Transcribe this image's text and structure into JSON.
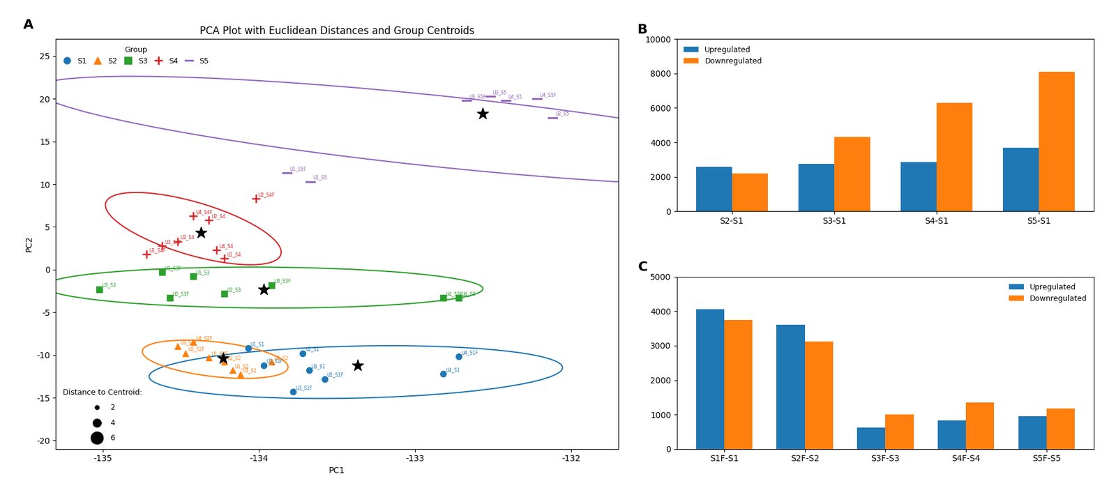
{
  "chart_data": [
    {
      "type": "scatter",
      "panel_label": "A",
      "title": "PCA Plot with Euclidean Distances and Group Centroids",
      "xlabel": "PC1",
      "ylabel": "PC2",
      "xlim": [
        -135.3,
        -131.7
      ],
      "ylim": [
        -21,
        27
      ],
      "xticks": [
        -135,
        -134,
        -133,
        -132
      ],
      "yticks": [
        -20,
        -15,
        -10,
        -5,
        0,
        5,
        10,
        15,
        20,
        25
      ],
      "legend": "upper left",
      "legend_title": "Group",
      "series": [
        {
          "name": "S1",
          "marker": "circle",
          "x": [
            -134.07,
            -133.97,
            -133.72,
            -133.58,
            -133.68,
            -133.78,
            -132.82,
            -132.72
          ],
          "y": [
            -9.2,
            -11.2,
            -9.8,
            -12.8,
            -11.8,
            -14.3,
            -12.2,
            -10.2
          ],
          "point_labels": [
            "U1_S1",
            "U1_S1F",
            "U2_S1",
            "U2_S1F",
            "U3_S1",
            "U3_S1F",
            "U4_S1",
            "U4_S1F"
          ]
        },
        {
          "name": "S2",
          "marker": "triangle",
          "x": [
            -134.52,
            -134.42,
            -134.47,
            -134.32,
            -134.22,
            -134.17,
            -133.92,
            -134.12
          ],
          "y": [
            -9.0,
            -8.5,
            -9.8,
            -10.3,
            -10.8,
            -11.8,
            -10.8,
            -12.3
          ],
          "point_labels": [
            "U3_S2F",
            "U4_S2F",
            "U2_S2F",
            "U1_S2F",
            "U2_S2",
            "U1_S2",
            "U4_S2",
            "U3_S2"
          ]
        },
        {
          "name": "S3",
          "marker": "square",
          "x": [
            -135.02,
            -134.62,
            -134.57,
            -134.42,
            -134.22,
            -133.92,
            -132.82,
            -132.72
          ],
          "y": [
            -2.3,
            -0.3,
            -3.3,
            -0.8,
            -2.8,
            -1.8,
            -3.3,
            -3.3
          ],
          "point_labels": [
            "U3_S3",
            "U1_S3F",
            "U2_S3F",
            "U1_S3",
            "U2_S3",
            "U3_S3F",
            "U4_S3F",
            "U4_S3"
          ]
        },
        {
          "name": "S4",
          "marker": "plus",
          "x": [
            -134.72,
            -134.62,
            -134.52,
            -134.42,
            -134.32,
            -134.27,
            -134.22,
            -134.02
          ],
          "y": [
            1.8,
            2.8,
            3.3,
            6.3,
            5.8,
            2.3,
            1.3,
            8.3
          ],
          "point_labels": [
            "U1_S4F",
            "U3_S4F",
            "U3_S4",
            "U4_S4F",
            "U2_S4",
            "U4_S4",
            "U1_S4",
            "U2_S4F"
          ]
        },
        {
          "name": "S5",
          "marker": "boxtimes",
          "x": [
            -133.82,
            -133.67,
            -132.67,
            -132.52,
            -132.42,
            -132.22,
            -132.12
          ],
          "y": [
            11.3,
            10.3,
            19.8,
            20.3,
            19.8,
            20.0,
            17.8
          ],
          "point_labels": [
            "U1_S5F",
            "U1_S5",
            "U3_S5F",
            "U3_S5",
            "U4_S5",
            "U4_S5F",
            "U2_S5"
          ]
        }
      ],
      "ellipses": [
        {
          "series": "S1",
          "cx": -133.38,
          "cy": -12.0,
          "width": 2.6,
          "height": 6.2,
          "angle": -5
        },
        {
          "series": "S2",
          "cx": -134.28,
          "cy": -10.5,
          "width": 0.85,
          "height": 4.5,
          "angle": 5
        },
        {
          "series": "S3",
          "cx": -133.97,
          "cy": -2.1,
          "width": 2.8,
          "height": 4.8,
          "angle": 3
        },
        {
          "series": "S4",
          "cx": -134.42,
          "cy": 4.8,
          "width": 0.85,
          "height": 8.5,
          "angle": 5
        },
        {
          "series": "S5",
          "cx": -132.85,
          "cy": 16.2,
          "width": 3.2,
          "height": 13.5,
          "angle": 18
        }
      ],
      "centroids": {
        "series": [
          "S1",
          "S2",
          "S3",
          "S4",
          "S5"
        ],
        "x": [
          -133.37,
          -134.23,
          -133.97,
          -134.37,
          -132.57
        ],
        "y": [
          -11.2,
          -10.4,
          -2.3,
          4.3,
          18.3
        ],
        "color": "black",
        "marker": "star"
      },
      "size_legend": {
        "title": "Distance to Centroid:",
        "values": [
          2,
          4,
          6
        ],
        "color": "black",
        "legend": "lower left"
      }
    },
    {
      "type": "bar",
      "panel_label": "B",
      "categories": [
        "S2-S1",
        "S3-S1",
        "S4-S1",
        "S5-S1"
      ],
      "series": [
        {
          "name": "Upregulated",
          "values": [
            2580,
            2750,
            2850,
            3700
          ]
        },
        {
          "name": "Downregulated",
          "values": [
            2200,
            4300,
            6300,
            8100
          ]
        }
      ],
      "ylim": [
        0,
        10000
      ],
      "yticks": [
        0,
        2000,
        4000,
        6000,
        8000,
        10000
      ],
      "legend": "upper left"
    },
    {
      "type": "bar",
      "panel_label": "C",
      "categories": [
        "S1F-S1",
        "S2F-S2",
        "S3F-S3",
        "S4F-S4",
        "S5F-S5"
      ],
      "series": [
        {
          "name": "Upregulated",
          "values": [
            4050,
            3600,
            620,
            820,
            950
          ]
        },
        {
          "name": "Downregulated",
          "values": [
            3750,
            3120,
            1000,
            1350,
            1180
          ]
        }
      ],
      "ylim": [
        0,
        5000
      ],
      "yticks": [
        0,
        1000,
        2000,
        3000,
        4000,
        5000
      ],
      "legend": "upper right"
    }
  ]
}
